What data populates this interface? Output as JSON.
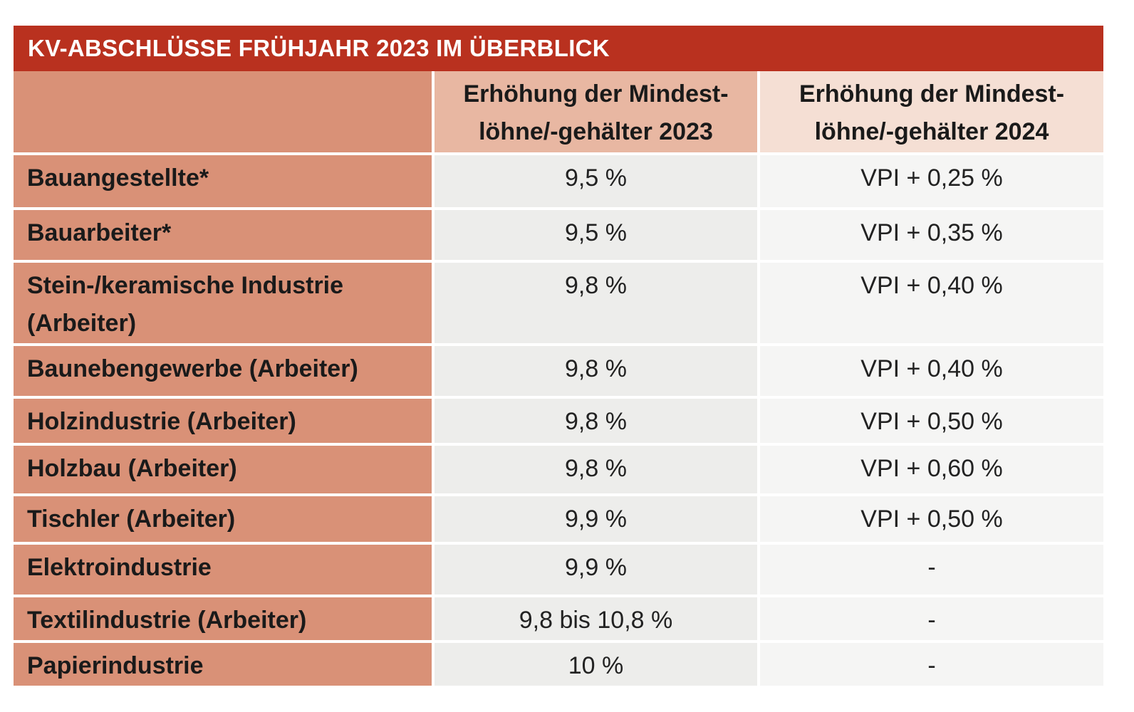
{
  "title": "KV-ABSCHLÜSSE FRÜHJAHR 2023 IM ÜBERBLICK",
  "headers": {
    "col1_line1": "Erhöhung der Mindest-",
    "col1_line2": "löhne/-gehälter 2023",
    "col2_line1": "Erhöhung der Mindest-",
    "col2_line2": "löhne/-gehälter 2024"
  },
  "rows": [
    {
      "label": "Bauangestellte*",
      "label2": "",
      "v2023": "9,5 %",
      "v2024": "VPI + 0,25 %"
    },
    {
      "label": "Bauarbeiter*",
      "label2": "",
      "v2023": "9,5 %",
      "v2024": "VPI + 0,35 %"
    },
    {
      "label": "Stein-/keramische Industrie",
      "label2": "(Arbeiter)",
      "v2023": "9,8 %",
      "v2024": "VPI + 0,40 %"
    },
    {
      "label": "Baunebengewerbe (Arbeiter)",
      "label2": "",
      "v2023": "9,8 %",
      "v2024": "VPI + 0,40 %"
    },
    {
      "label": "Holzindustrie (Arbeiter)",
      "label2": "",
      "v2023": "9,8 %",
      "v2024": "VPI + 0,50 %"
    },
    {
      "label": "Holzbau (Arbeiter)",
      "label2": "",
      "v2023": "9,8 %",
      "v2024": "VPI + 0,60 %"
    },
    {
      "label": "Tischler (Arbeiter)",
      "label2": "",
      "v2023": "9,9 %",
      "v2024": "VPI + 0,50 %"
    },
    {
      "label": "Elektroindustrie",
      "label2": "",
      "v2023": "9,9 %",
      "v2024": "-"
    },
    {
      "label": "Textilindustrie (Arbeiter)",
      "label2": "",
      "v2023": "9,8 bis 10,8 %",
      "v2024": "-"
    },
    {
      "label": "Papierindustrie",
      "label2": "",
      "v2023": "10 %",
      "v2024": "-"
    }
  ],
  "colors": {
    "title_bg": "#b9311f",
    "label_bg": "#d99177",
    "head_2023_bg": "#e8b7a2",
    "head_2024_bg": "#f5dfd4",
    "cell_2023_bg": "#ededeb",
    "cell_2024_bg": "#f5f5f4"
  }
}
